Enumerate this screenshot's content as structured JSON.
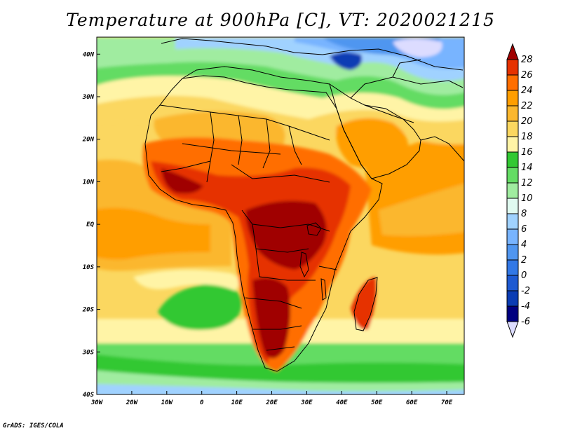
{
  "title": "Temperature at 900hPa [C], VT: 2020021215",
  "credit": "GrADS: IGES/COLA",
  "map": {
    "lon_range": [
      -30,
      75
    ],
    "lat_range": [
      -40,
      44
    ],
    "lon_ticks": [
      {
        "v": -30,
        "label": "30W"
      },
      {
        "v": -20,
        "label": "20W"
      },
      {
        "v": -10,
        "label": "10W"
      },
      {
        "v": 0,
        "label": "0"
      },
      {
        "v": 10,
        "label": "10E"
      },
      {
        "v": 20,
        "label": "20E"
      },
      {
        "v": 30,
        "label": "30E"
      },
      {
        "v": 40,
        "label": "40E"
      },
      {
        "v": 50,
        "label": "50E"
      },
      {
        "v": 60,
        "label": "60E"
      },
      {
        "v": 70,
        "label": "70E"
      }
    ],
    "lat_ticks": [
      {
        "v": 40,
        "label": "40N"
      },
      {
        "v": 30,
        "label": "30N"
      },
      {
        "v": 20,
        "label": "20N"
      },
      {
        "v": 10,
        "label": "10N"
      },
      {
        "v": 0,
        "label": "EQ"
      },
      {
        "v": -10,
        "label": "10S"
      },
      {
        "v": -20,
        "label": "20S"
      },
      {
        "v": -30,
        "label": "30S"
      },
      {
        "v": -40,
        "label": "40S"
      }
    ]
  },
  "colorbar": {
    "levels": [
      28,
      26,
      24,
      22,
      20,
      18,
      16,
      14,
      12,
      10,
      8,
      6,
      4,
      2,
      0,
      -2,
      -4,
      -6
    ],
    "colors": [
      "#a00000",
      "#e63200",
      "#ff6e00",
      "#ff9e00",
      "#fbb72e",
      "#fbd760",
      "#fff4a6",
      "#32c832",
      "#64dc64",
      "#a0eca0",
      "#e0faf0",
      "#a0d2ff",
      "#78b4ff",
      "#5096f0",
      "#3278e6",
      "#1e5ad2",
      "#0a3cb4",
      "#000080",
      "#dcdcff"
    ]
  }
}
